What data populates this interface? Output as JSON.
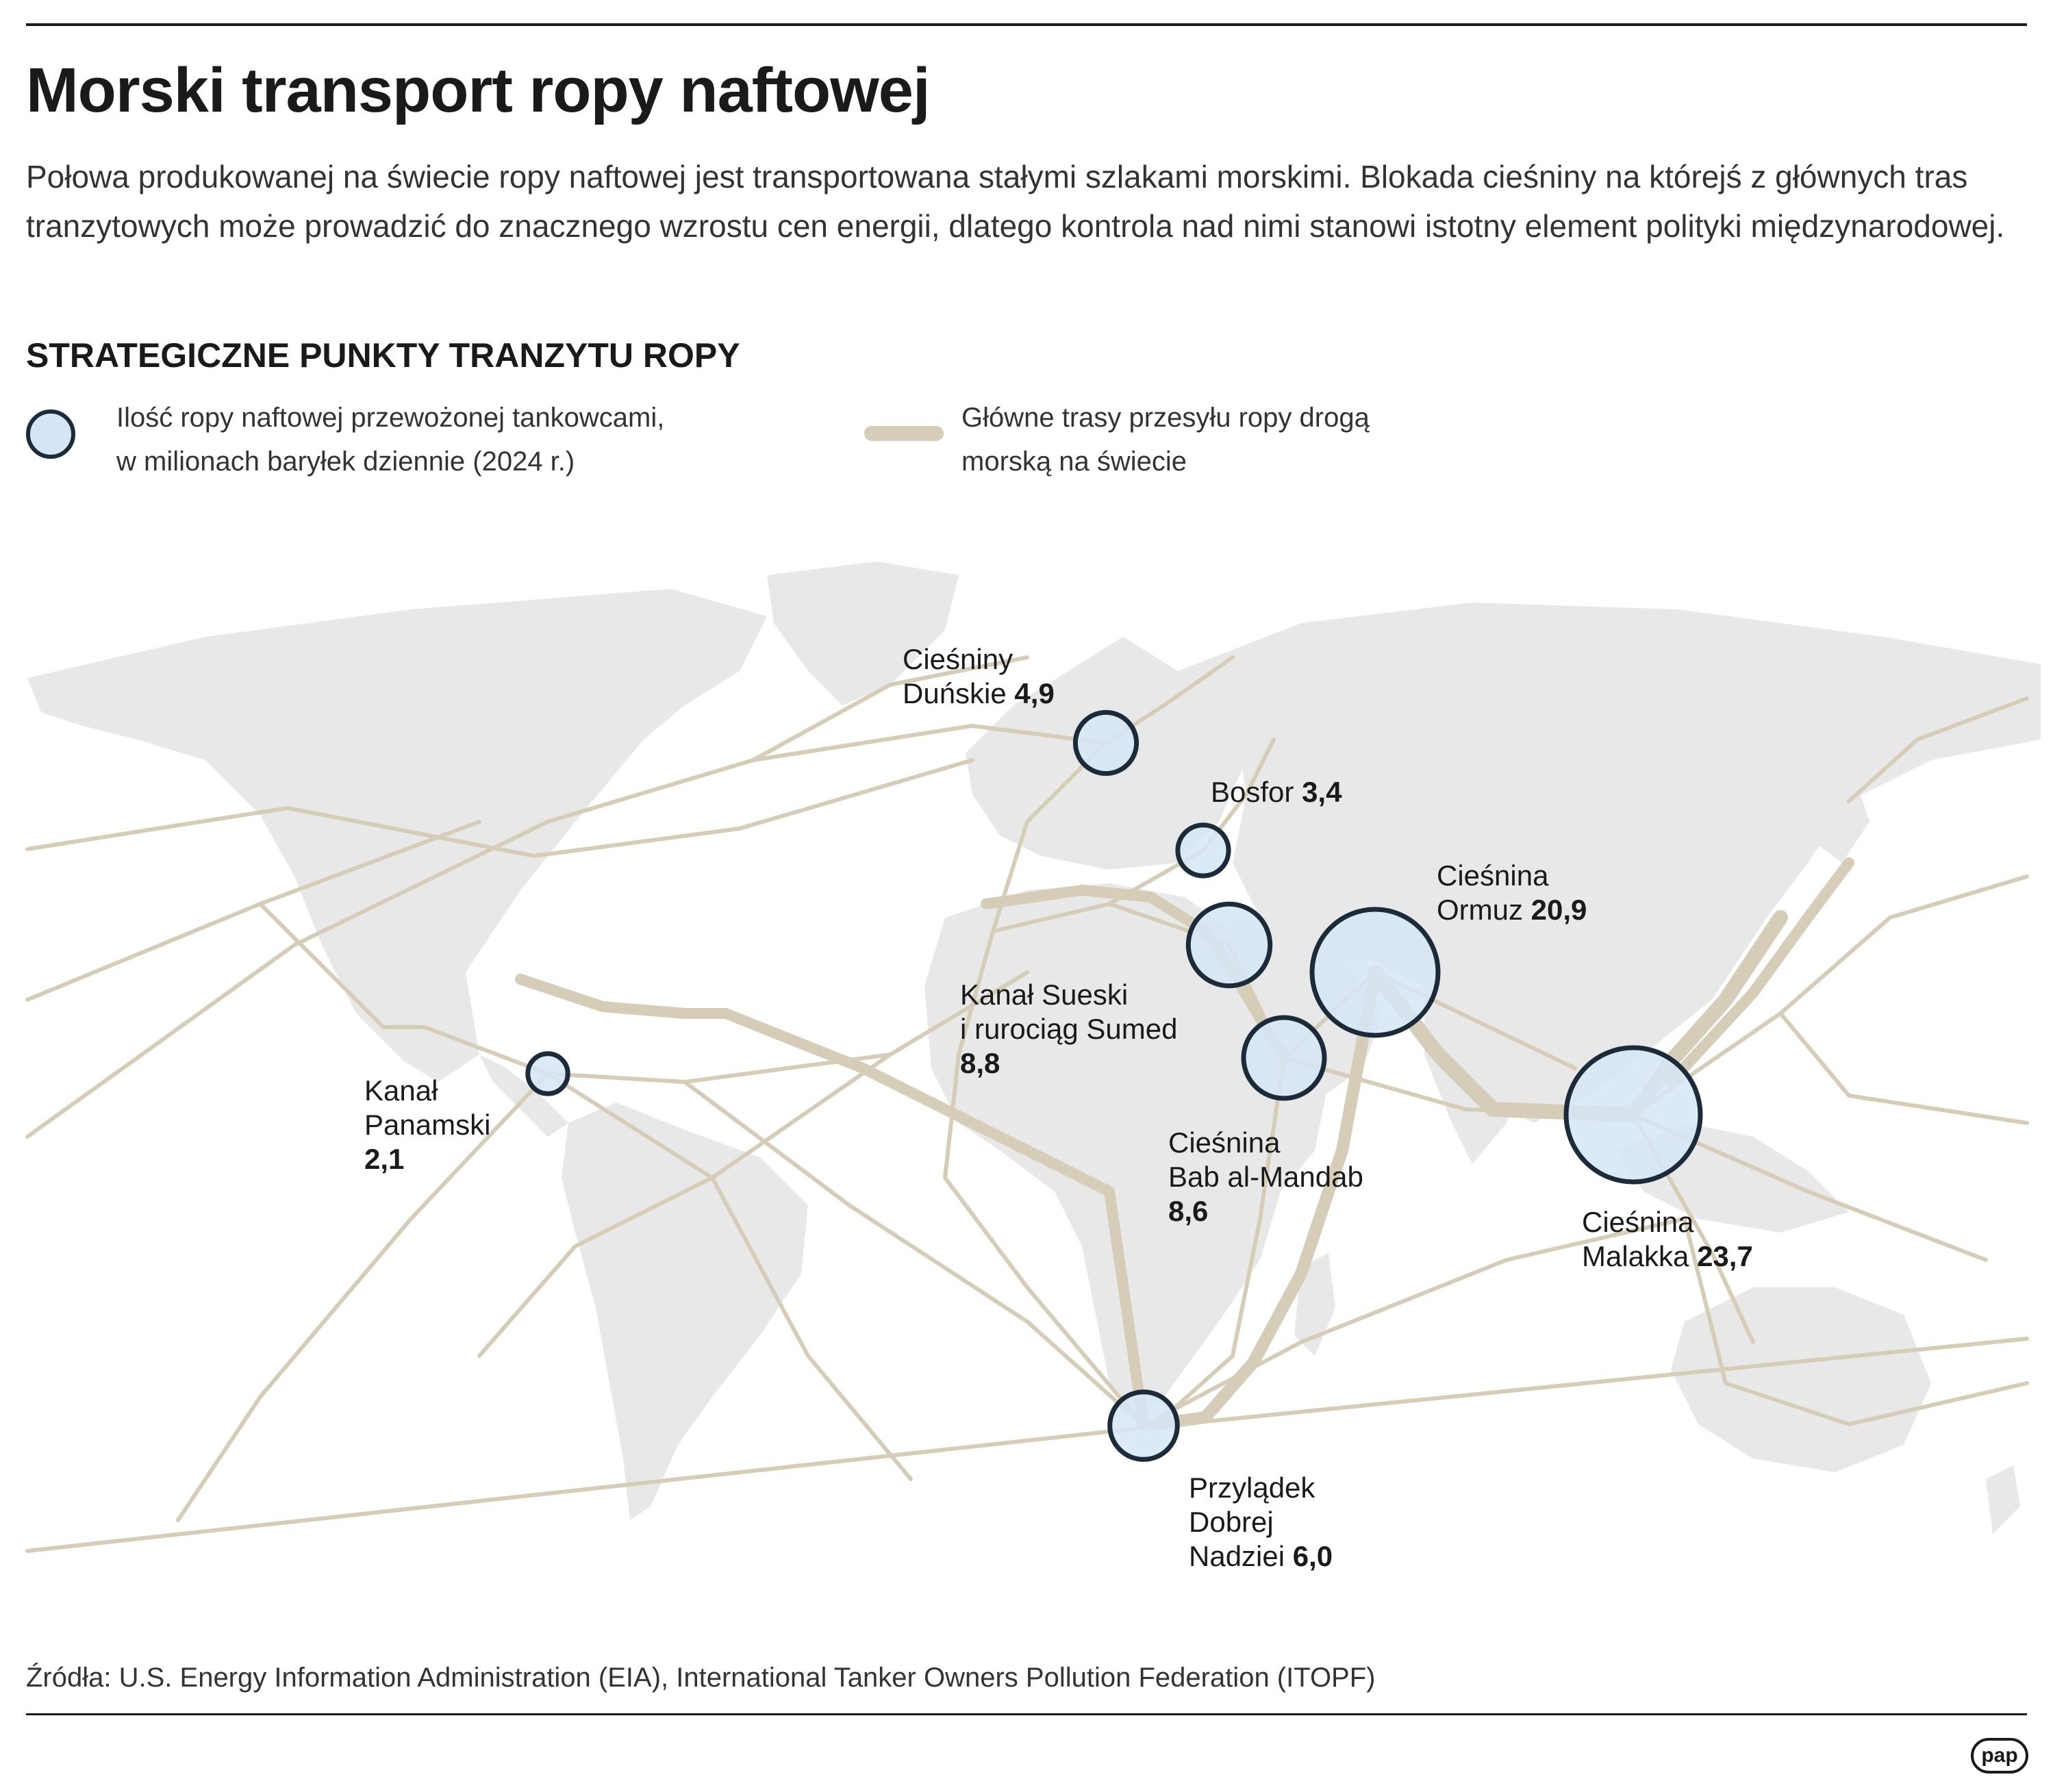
{
  "title": "Morski transport ropy naftowej",
  "lede": "Połowa produkowanej na świecie ropy naftowej jest transportowana stałymi szlakami morskimi. Blokada cieśniny na którejś z głównych tras tranzytowych może prowadzić do znacznego wzrostu cen energii, dlatego kontrola nad nimi stanowi istotny element polityki międzynarodowej.",
  "subhead": "STRATEGICZNE PUNKTY TRANZYTU ROPY",
  "legend": {
    "circle_text": "Ilość ropy naftowej przewożonej tankowcami,\nw milionach baryłek dziennie (2024 r.)",
    "line_text": "Główne trasy przesyłu ropy drogą\nmorską na świecie"
  },
  "colors": {
    "land": "#e8e8e8",
    "route": "#d5cdb8",
    "circle_fill": "#d6e5f5",
    "circle_stroke": "#1c2b3a",
    "text": "#1a1a1a"
  },
  "chokepoints": [
    {
      "id": "danish",
      "name": "Cieśniny\nDuńskie",
      "value": "4,9",
      "mbd": 4.9
    },
    {
      "id": "bosphorus",
      "name": "Bosfor",
      "value": "3,4",
      "mbd": 3.4
    },
    {
      "id": "hormuz",
      "name": "Cieśnina\nOrmuz",
      "value": "20,9",
      "mbd": 20.9
    },
    {
      "id": "suez",
      "name": "Kanał Sueski\ni rurociąg Sumed",
      "value": "8,8",
      "mbd": 8.8
    },
    {
      "id": "panama",
      "name": "Kanał\nPanamski",
      "value": "2,1",
      "mbd": 2.1
    },
    {
      "id": "babelmandeb",
      "name": "Cieśnina\nBab al-Mandab",
      "value": "8,6",
      "mbd": 8.6
    },
    {
      "id": "malacca",
      "name": "Cieśnina\nMalakka",
      "value": "23,7",
      "mbd": 23.7
    },
    {
      "id": "goodhope",
      "name": "Przylądek\nDobrej\nNadziei",
      "value": "6,0",
      "mbd": 6.0
    }
  ],
  "source": "Źródła: U.S. Energy Information Administration (EIA), International Tanker Owners Pollution Federation (ITOPF)",
  "logo": "pap"
}
